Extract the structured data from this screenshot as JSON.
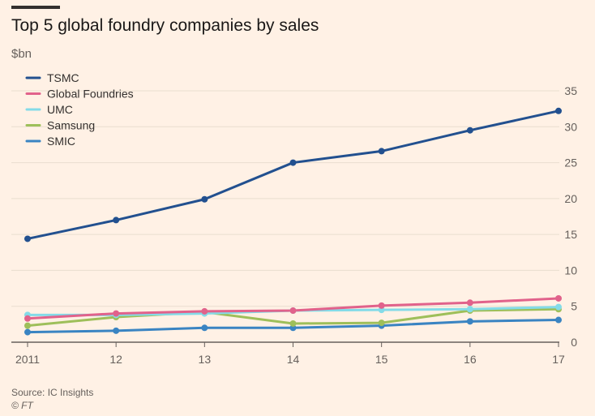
{
  "header": {
    "title": "Top 5 global foundry companies by sales",
    "unit": "$bn"
  },
  "footer": {
    "source": "Source: IC Insights",
    "copyright": "© FT"
  },
  "chart_data": {
    "type": "line",
    "title": "Top 5 global foundry companies by sales",
    "ylabel": "$bn",
    "xlabel": "",
    "categories": [
      "2011",
      "12",
      "13",
      "14",
      "15",
      "16",
      "17"
    ],
    "ylim": [
      0,
      35
    ],
    "yticks": [
      0,
      5,
      10,
      15,
      20,
      25,
      30,
      35
    ],
    "grid": true,
    "legend_position": "top-left",
    "series": [
      {
        "name": "TSMC",
        "color": "#22508F",
        "values": [
          14.4,
          17.0,
          19.9,
          25.0,
          26.6,
          29.5,
          32.2
        ]
      },
      {
        "name": "Global Foundries",
        "color": "#E1628B",
        "values": [
          3.3,
          4.0,
          4.3,
          4.4,
          5.1,
          5.5,
          6.1
        ]
      },
      {
        "name": "UMC",
        "color": "#84DBE8",
        "values": [
          3.8,
          3.8,
          4.0,
          4.4,
          4.5,
          4.6,
          4.9
        ]
      },
      {
        "name": "Samsung",
        "color": "#9EBF5A",
        "values": [
          2.3,
          3.5,
          4.2,
          2.6,
          2.7,
          4.4,
          4.6
        ]
      },
      {
        "name": "SMIC",
        "color": "#3A84C2",
        "values": [
          1.4,
          1.6,
          2.0,
          2.0,
          2.3,
          2.9,
          3.1
        ]
      }
    ]
  }
}
